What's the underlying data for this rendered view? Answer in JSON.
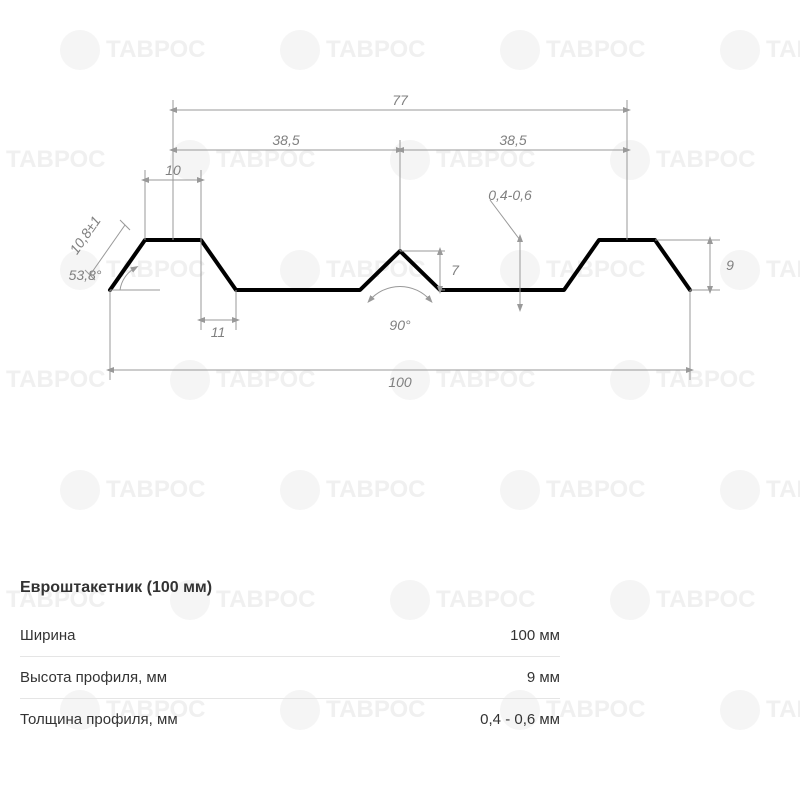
{
  "diagram": {
    "type": "technical-profile",
    "profile_stroke": "#000000",
    "profile_stroke_width": 4,
    "dim_stroke": "#999999",
    "dim_stroke_width": 1,
    "label_color": "#808080",
    "label_fontsize": 14,
    "label_style": "italic",
    "background": "#ffffff",
    "dimensions": {
      "total_width": "100",
      "top_span": "77",
      "half_span_left": "38,5",
      "half_span_right": "38,5",
      "top_flat": "10",
      "bottom_offset": "11",
      "edge_len": "10,8±1",
      "edge_angle": "53,8°",
      "center_angle": "90°",
      "center_height": "7",
      "thickness": "0,4-0,6",
      "height": "9"
    }
  },
  "spec": {
    "title": "Евроштакетник (100 мм)",
    "rows": [
      {
        "label": "Ширина",
        "value": "100 мм"
      },
      {
        "label": "Высота профиля, мм",
        "value": "9 мм"
      },
      {
        "label": "Толщина профиля, мм",
        "value": "0,4 - 0,6 мм"
      }
    ]
  },
  "watermark": {
    "text": "ТАВРОС",
    "color": "#f0f0f0",
    "positions": [
      [
        60,
        30
      ],
      [
        280,
        30
      ],
      [
        500,
        30
      ],
      [
        720,
        30
      ],
      [
        -40,
        140
      ],
      [
        170,
        140
      ],
      [
        390,
        140
      ],
      [
        610,
        140
      ],
      [
        60,
        250
      ],
      [
        280,
        250
      ],
      [
        500,
        250
      ],
      [
        720,
        250
      ],
      [
        -40,
        360
      ],
      [
        170,
        360
      ],
      [
        390,
        360
      ],
      [
        610,
        360
      ],
      [
        60,
        470
      ],
      [
        280,
        470
      ],
      [
        500,
        470
      ],
      [
        720,
        470
      ],
      [
        -40,
        580
      ],
      [
        170,
        580
      ],
      [
        390,
        580
      ],
      [
        610,
        580
      ],
      [
        60,
        690
      ],
      [
        280,
        690
      ],
      [
        500,
        690
      ],
      [
        720,
        690
      ]
    ]
  }
}
